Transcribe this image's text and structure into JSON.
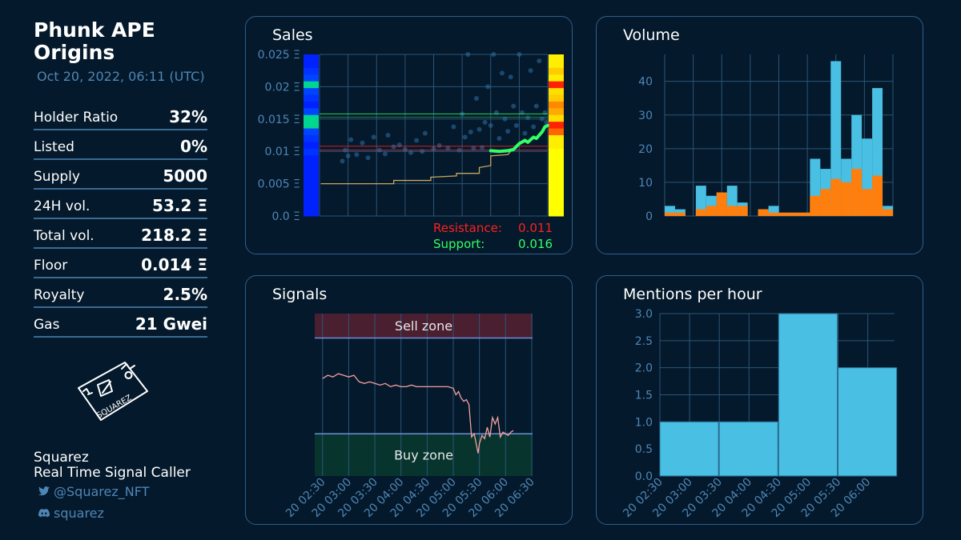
{
  "collection": {
    "name_line1": "Phunk APE",
    "name_line2": "Origins",
    "timestamp": "Oct 20, 2022, 06:11 (UTC)"
  },
  "stats": [
    {
      "label": "Holder Ratio",
      "value": "32%"
    },
    {
      "label": "Listed",
      "value": "0%"
    },
    {
      "label": "Supply",
      "value": "5000"
    },
    {
      "label": "24H vol.",
      "value": "53.2 Ξ"
    },
    {
      "label": "Total vol.",
      "value": "218.2 Ξ"
    },
    {
      "label": "Floor",
      "value": "0.014 Ξ"
    },
    {
      "label": "Royalty",
      "value": "2.5%"
    },
    {
      "label": "Gas",
      "value": "21 Gwei"
    }
  ],
  "logo": {
    "text": "SQUAREZ"
  },
  "author": {
    "name": "Squarez",
    "tagline": "Real Time Signal Caller",
    "twitter": "@Squarez_NFT",
    "discord": "squarez",
    "twitter_icon": "twitter-icon",
    "discord_icon": "discord-icon"
  },
  "colors": {
    "background": "#04192b",
    "panel_border": "#2f5f8a",
    "grid": "#2c5577",
    "tick": "#4f86b6",
    "volume_total": "#48bfe3",
    "volume_part": "#ff7f0e",
    "resistance": "#ff2020",
    "support": "#33ff66",
    "floor_line": "#c8a660",
    "signal_line": "#f4a0a0",
    "mentions": "#48bfe3"
  },
  "chart_data": [
    {
      "id": "sales",
      "type": "scatter",
      "title": "Sales",
      "y_ticks": [
        "0.0 Ξ",
        "0.005 Ξ",
        "0.01 Ξ",
        "0.015 Ξ",
        "0.02 Ξ",
        "0.025 Ξ"
      ],
      "ylim": [
        0,
        0.025
      ],
      "xlim": [
        0,
        8
      ],
      "points": [
        [
          0.8,
          0.0085
        ],
        [
          0.9,
          0.0102
        ],
        [
          1.0,
          0.0093
        ],
        [
          1.1,
          0.0118
        ],
        [
          1.3,
          0.0095
        ],
        [
          1.5,
          0.0113
        ],
        [
          1.7,
          0.009
        ],
        [
          1.9,
          0.0122
        ],
        [
          2.1,
          0.0102
        ],
        [
          2.3,
          0.0096
        ],
        [
          2.4,
          0.0125
        ],
        [
          2.6,
          0.0107
        ],
        [
          2.8,
          0.011
        ],
        [
          3.0,
          0.0103
        ],
        [
          3.2,
          0.0098
        ],
        [
          3.4,
          0.0117
        ],
        [
          3.6,
          0.01
        ],
        [
          3.7,
          0.0128
        ],
        [
          4.0,
          0.0104
        ],
        [
          4.2,
          0.0109
        ],
        [
          4.5,
          0.0105
        ],
        [
          4.7,
          0.0138
        ],
        [
          4.9,
          0.0102
        ],
        [
          5.0,
          0.0158
        ],
        [
          5.1,
          0.0122
        ],
        [
          5.2,
          0.025
        ],
        [
          5.3,
          0.013
        ],
        [
          5.4,
          0.0105
        ],
        [
          5.5,
          0.0182
        ],
        [
          5.6,
          0.0134
        ],
        [
          5.7,
          0.0106
        ],
        [
          5.8,
          0.0145
        ],
        [
          5.9,
          0.02
        ],
        [
          6.0,
          0.014
        ],
        [
          6.1,
          0.025
        ],
        [
          6.2,
          0.016
        ],
        [
          6.3,
          0.012
        ],
        [
          6.4,
          0.0221
        ],
        [
          6.5,
          0.015
        ],
        [
          6.6,
          0.0131
        ],
        [
          6.7,
          0.0215
        ],
        [
          6.8,
          0.017
        ],
        [
          6.9,
          0.014
        ],
        [
          7.0,
          0.025
        ],
        [
          7.1,
          0.016
        ],
        [
          7.2,
          0.0128
        ],
        [
          7.3,
          0.0152
        ],
        [
          7.4,
          0.0225
        ],
        [
          7.5,
          0.0138
        ],
        [
          7.6,
          0.017
        ],
        [
          7.7,
          0.024
        ],
        [
          7.8,
          0.015
        ],
        [
          7.9,
          0.016
        ],
        [
          7.95,
          0.0145
        ]
      ],
      "floor_line": [
        [
          0.05,
          0.005
        ],
        [
          2.6,
          0.005
        ],
        [
          2.6,
          0.0055
        ],
        [
          3.9,
          0.0055
        ],
        [
          3.9,
          0.006
        ],
        [
          4.8,
          0.0062
        ],
        [
          4.8,
          0.0066
        ],
        [
          5.6,
          0.0066
        ],
        [
          5.6,
          0.0075
        ],
        [
          6.0,
          0.0078
        ],
        [
          6.0,
          0.0093
        ],
        [
          6.6,
          0.0095
        ],
        [
          6.7,
          0.01
        ]
      ],
      "support_line_points": [
        [
          6.0,
          0.0101
        ],
        [
          6.3,
          0.01
        ],
        [
          6.6,
          0.0101
        ],
        [
          6.8,
          0.0103
        ],
        [
          7.0,
          0.0112
        ],
        [
          7.2,
          0.0117
        ],
        [
          7.3,
          0.0114
        ],
        [
          7.5,
          0.0122
        ],
        [
          7.6,
          0.012
        ],
        [
          7.8,
          0.013
        ],
        [
          7.9,
          0.0138
        ],
        [
          8.0,
          0.014
        ]
      ],
      "resistance_level": 0.0108,
      "resistance_level_2": 0.0102,
      "support_level": 0.0158,
      "support_level_2": 0.0153,
      "left_heatbar": [
        "#0022ff",
        "#0022ff",
        "#0033ff",
        "#0044ff",
        "#00d68f",
        "#0044ff",
        "#0033ff",
        "#0022ff",
        "#0044ff",
        "#00d68f",
        "#00d68f",
        "#0044ff",
        "#0033ff",
        "#0022ff",
        "#0033ff",
        "#0022ff",
        "#0022ff",
        "#0022ff",
        "#0022ff",
        "#0022ff",
        "#0022ff",
        "#0022ff",
        "#0022ff",
        "#0022ff"
      ],
      "right_heatbar": [
        "#ffee00",
        "#ffee00",
        "#ffcc00",
        "#ffee00",
        "#ff2200",
        "#ffdd00",
        "#ffcc00",
        "#ff8800",
        "#ffaa00",
        "#ffdd00",
        "#ff2200",
        "#ff6600",
        "#ffee00",
        "#ffee00",
        "#ffff00",
        "#ffff00",
        "#ffff00",
        "#ffff00",
        "#ffff00",
        "#ffff00",
        "#ffff00",
        "#ffff00",
        "#ffff00",
        "#ffff00"
      ],
      "annotations": [
        {
          "label": "Resistance:",
          "value": "0.011"
        },
        {
          "label": "Support:",
          "value": "0.016"
        }
      ]
    },
    {
      "id": "volume",
      "type": "bar",
      "title": "Volume",
      "y_ticks": [
        "0",
        "10",
        "20",
        "30",
        "40"
      ],
      "ylim": [
        0,
        48
      ],
      "bins": 24,
      "series": [
        {
          "values": [
            3,
            2,
            0,
            9,
            6,
            7,
            9,
            4,
            0,
            2,
            3,
            1,
            1,
            1,
            17,
            14,
            46,
            17,
            30,
            23,
            38,
            3
          ]
        },
        {
          "values": [
            1,
            1,
            0,
            2,
            3,
            7,
            3,
            3,
            0,
            2,
            1,
            1,
            1,
            1,
            6,
            8,
            11,
            10,
            14,
            8,
            12,
            2
          ]
        }
      ]
    },
    {
      "id": "signals",
      "type": "line",
      "title": "Signals",
      "x_ticks": [
        "20 02:30",
        "20 03:00",
        "20 03:30",
        "20 04:00",
        "20 04:30",
        "20 05:00",
        "20 05:30",
        "20 06:00",
        "20 06:30"
      ],
      "xlim": [
        0,
        8.7
      ],
      "ylim": [
        0,
        100
      ],
      "sell_zone": [
        85,
        100
      ],
      "buy_zone": [
        0,
        26
      ],
      "sell_label": "Sell zone",
      "buy_label": "Buy zone",
      "points": [
        [
          0.3,
          60
        ],
        [
          0.5,
          62
        ],
        [
          0.7,
          61
        ],
        [
          0.9,
          63
        ],
        [
          1.1,
          62
        ],
        [
          1.3,
          61
        ],
        [
          1.5,
          62
        ],
        [
          1.7,
          58
        ],
        [
          1.9,
          57
        ],
        [
          2.1,
          58
        ],
        [
          2.3,
          57
        ],
        [
          2.5,
          56
        ],
        [
          2.7,
          57
        ],
        [
          2.9,
          55
        ],
        [
          3.1,
          56
        ],
        [
          3.3,
          55
        ],
        [
          3.5,
          55
        ],
        [
          3.7,
          56
        ],
        [
          3.9,
          55
        ],
        [
          4.1,
          55
        ],
        [
          4.3,
          55
        ],
        [
          4.5,
          55
        ],
        [
          4.7,
          55
        ],
        [
          4.9,
          55
        ],
        [
          5.1,
          55
        ],
        [
          5.3,
          54
        ],
        [
          5.4,
          50
        ],
        [
          5.5,
          52
        ],
        [
          5.6,
          48
        ],
        [
          5.7,
          46
        ],
        [
          5.8,
          47
        ],
        [
          5.9,
          44
        ],
        [
          6.0,
          24
        ],
        [
          6.1,
          26
        ],
        [
          6.2,
          18
        ],
        [
          6.25,
          14
        ],
        [
          6.3,
          20
        ],
        [
          6.4,
          25
        ],
        [
          6.5,
          23
        ],
        [
          6.6,
          30
        ],
        [
          6.7,
          24
        ],
        [
          6.8,
          36
        ],
        [
          6.9,
          32
        ],
        [
          7.0,
          36
        ],
        [
          7.05,
          30
        ],
        [
          7.1,
          24
        ],
        [
          7.2,
          27
        ],
        [
          7.3,
          26
        ],
        [
          7.4,
          25
        ],
        [
          7.5,
          27
        ],
        [
          7.6,
          28
        ]
      ]
    },
    {
      "id": "mentions",
      "type": "bar",
      "title": "Mentions per hour",
      "y_ticks": [
        "0.0",
        "0.5",
        "1.0",
        "1.5",
        "2.0",
        "2.5",
        "3.0"
      ],
      "ylim": [
        0,
        3
      ],
      "x_ticks": [
        "20 02:30",
        "20 03:00",
        "20 03:30",
        "20 04:00",
        "20 04:30",
        "20 05:00",
        "20 05:30",
        "20 06:00"
      ],
      "values": [
        1,
        1,
        3,
        2
      ]
    }
  ]
}
